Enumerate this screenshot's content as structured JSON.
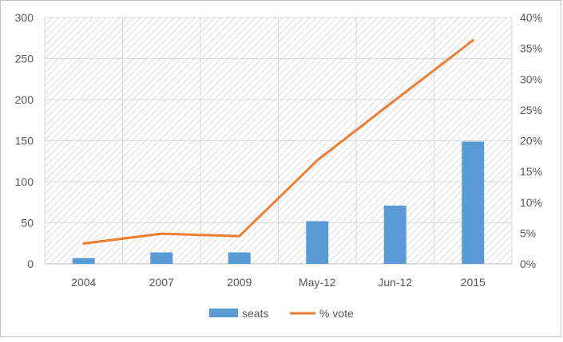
{
  "chart_data": {
    "type": "bar",
    "categories": [
      "2004",
      "2007",
      "2009",
      "May-12",
      "Jun-12",
      "2015"
    ],
    "series": [
      {
        "name": "seats",
        "type": "bar",
        "axis": "left",
        "values": [
          7,
          14,
          14,
          52,
          71,
          149
        ],
        "color": "#5b9bd5"
      },
      {
        "name": "% vote",
        "type": "line",
        "axis": "right",
        "values": [
          0.033,
          0.049,
          0.045,
          0.168,
          0.266,
          0.363
        ],
        "color": "#ed7d31"
      }
    ],
    "y_left": {
      "min": 0,
      "max": 300,
      "ticks": [
        0,
        50,
        100,
        150,
        200,
        250,
        300
      ],
      "tick_labels": [
        "0",
        "50",
        "100",
        "150",
        "200",
        "250",
        "300"
      ]
    },
    "y_right": {
      "min": 0,
      "max": 0.4,
      "ticks": [
        0,
        0.05,
        0.1,
        0.15,
        0.2,
        0.25,
        0.3,
        0.35,
        0.4
      ],
      "tick_labels": [
        "0%",
        "5%",
        "10%",
        "15%",
        "20%",
        "25%",
        "30%",
        "35%",
        "40%"
      ]
    },
    "grid": true,
    "plot_fill": "diagonal-hatch",
    "legend_position": "bottom",
    "title": "",
    "xlabel": "",
    "ylabel": ""
  }
}
